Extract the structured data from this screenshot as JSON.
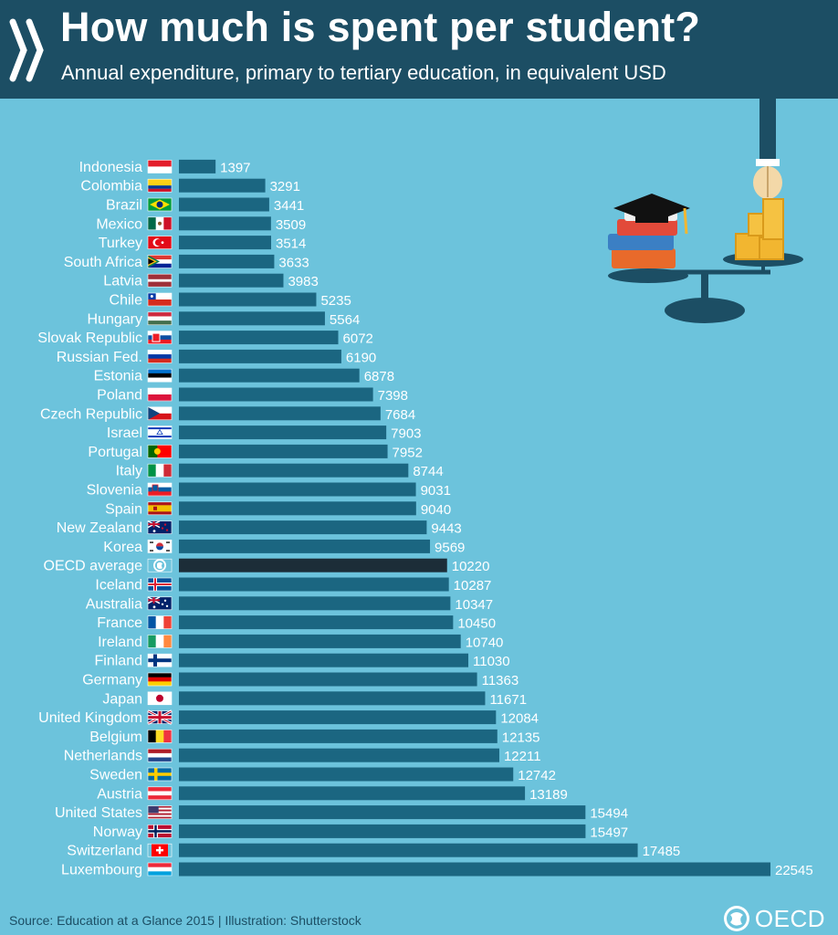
{
  "header": {
    "title": "How much is spent per student?",
    "subtitle": "Annual expenditure, primary to tertiary education, in equivalent USD"
  },
  "footer": {
    "source": "Source: Education at a Glance 2015 | Illustration: Shutterstock",
    "logo_text": "OECD"
  },
  "colors": {
    "background": "#6cc3dc",
    "header": "#1c4e64",
    "bar": "#1b6681",
    "highlight_bar": "#1c2d38",
    "label_text": "#ffffff"
  },
  "chart_data": {
    "type": "bar",
    "orientation": "horizontal",
    "title": "How much is spent per student?",
    "xlabel": "",
    "ylabel": "",
    "xlim": [
      0,
      22545
    ],
    "grid": false,
    "highlight": "OECD average",
    "categories": [
      "Indonesia",
      "Colombia",
      "Brazil",
      "Mexico",
      "Turkey",
      "South Africa",
      "Latvia",
      "Chile",
      "Hungary",
      "Slovak Republic",
      "Russian Fed.",
      "Estonia",
      "Poland",
      "Czech Republic",
      "Israel",
      "Portugal",
      "Italy",
      "Slovenia",
      "Spain",
      "New Zealand",
      "Korea",
      "OECD average",
      "Iceland",
      "Australia",
      "France",
      "Ireland",
      "Finland",
      "Germany",
      "Japan",
      "United Kingdom",
      "Belgium",
      "Netherlands",
      "Sweden",
      "Austria",
      "United States",
      "Norway",
      "Switzerland",
      "Luxembourg"
    ],
    "values": [
      1397,
      3291,
      3441,
      3509,
      3514,
      3633,
      3983,
      5235,
      5564,
      6072,
      6190,
      6878,
      7398,
      7684,
      7903,
      7952,
      8744,
      9031,
      9040,
      9443,
      9569,
      10220,
      10287,
      10347,
      10450,
      10740,
      11030,
      11363,
      11671,
      12084,
      12135,
      12211,
      12742,
      13189,
      15494,
      15497,
      17485,
      22545
    ],
    "flag_icons": [
      "indonesia-flag-icon",
      "colombia-flag-icon",
      "brazil-flag-icon",
      "mexico-flag-icon",
      "turkey-flag-icon",
      "south-africa-flag-icon",
      "latvia-flag-icon",
      "chile-flag-icon",
      "hungary-flag-icon",
      "slovak-republic-flag-icon",
      "russia-flag-icon",
      "estonia-flag-icon",
      "poland-flag-icon",
      "czech-republic-flag-icon",
      "israel-flag-icon",
      "portugal-flag-icon",
      "italy-flag-icon",
      "slovenia-flag-icon",
      "spain-flag-icon",
      "new-zealand-flag-icon",
      "korea-flag-icon",
      "oecd-globe-icon",
      "iceland-flag-icon",
      "australia-flag-icon",
      "france-flag-icon",
      "ireland-flag-icon",
      "finland-flag-icon",
      "germany-flag-icon",
      "japan-flag-icon",
      "united-kingdom-flag-icon",
      "belgium-flag-icon",
      "netherlands-flag-icon",
      "sweden-flag-icon",
      "austria-flag-icon",
      "united-states-flag-icon",
      "norway-flag-icon",
      "switzerland-flag-icon",
      "luxembourg-flag-icon"
    ]
  }
}
